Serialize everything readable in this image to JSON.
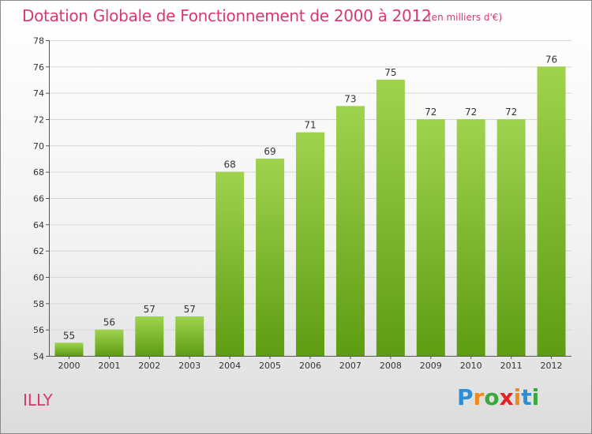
{
  "header": {
    "title": "Dotation Globale de Fonctionnement de 2000 à 2012",
    "subtitle": "(en milliers d'€)"
  },
  "footer": {
    "commune": "ILLY",
    "logo_letters": [
      "P",
      "r",
      "o",
      "x",
      "i",
      "t",
      "i"
    ],
    "logo_colors": [
      "#2a8fd6",
      "#f08a1c",
      "#3aa83a",
      "#e02525",
      "#f08a1c",
      "#2a8fd6",
      "#3aa83a"
    ]
  },
  "chart_data": {
    "type": "bar",
    "title": "Dotation Globale de Fonctionnement de 2000 à 2012",
    "subtitle": "(en milliers d'€)",
    "categories": [
      "2000",
      "2001",
      "2002",
      "2003",
      "2004",
      "2005",
      "2006",
      "2007",
      "2008",
      "2009",
      "2010",
      "2011",
      "2012"
    ],
    "values": [
      55,
      56,
      57,
      57,
      68,
      69,
      71,
      73,
      75,
      72,
      72,
      72,
      76
    ],
    "ylim": [
      54,
      78
    ],
    "yticks": [
      54,
      56,
      58,
      60,
      62,
      64,
      66,
      68,
      70,
      72,
      74,
      76,
      78
    ],
    "grid": true,
    "bar_color_top": "#9fd34e",
    "bar_color_bottom": "#5e9c12"
  }
}
